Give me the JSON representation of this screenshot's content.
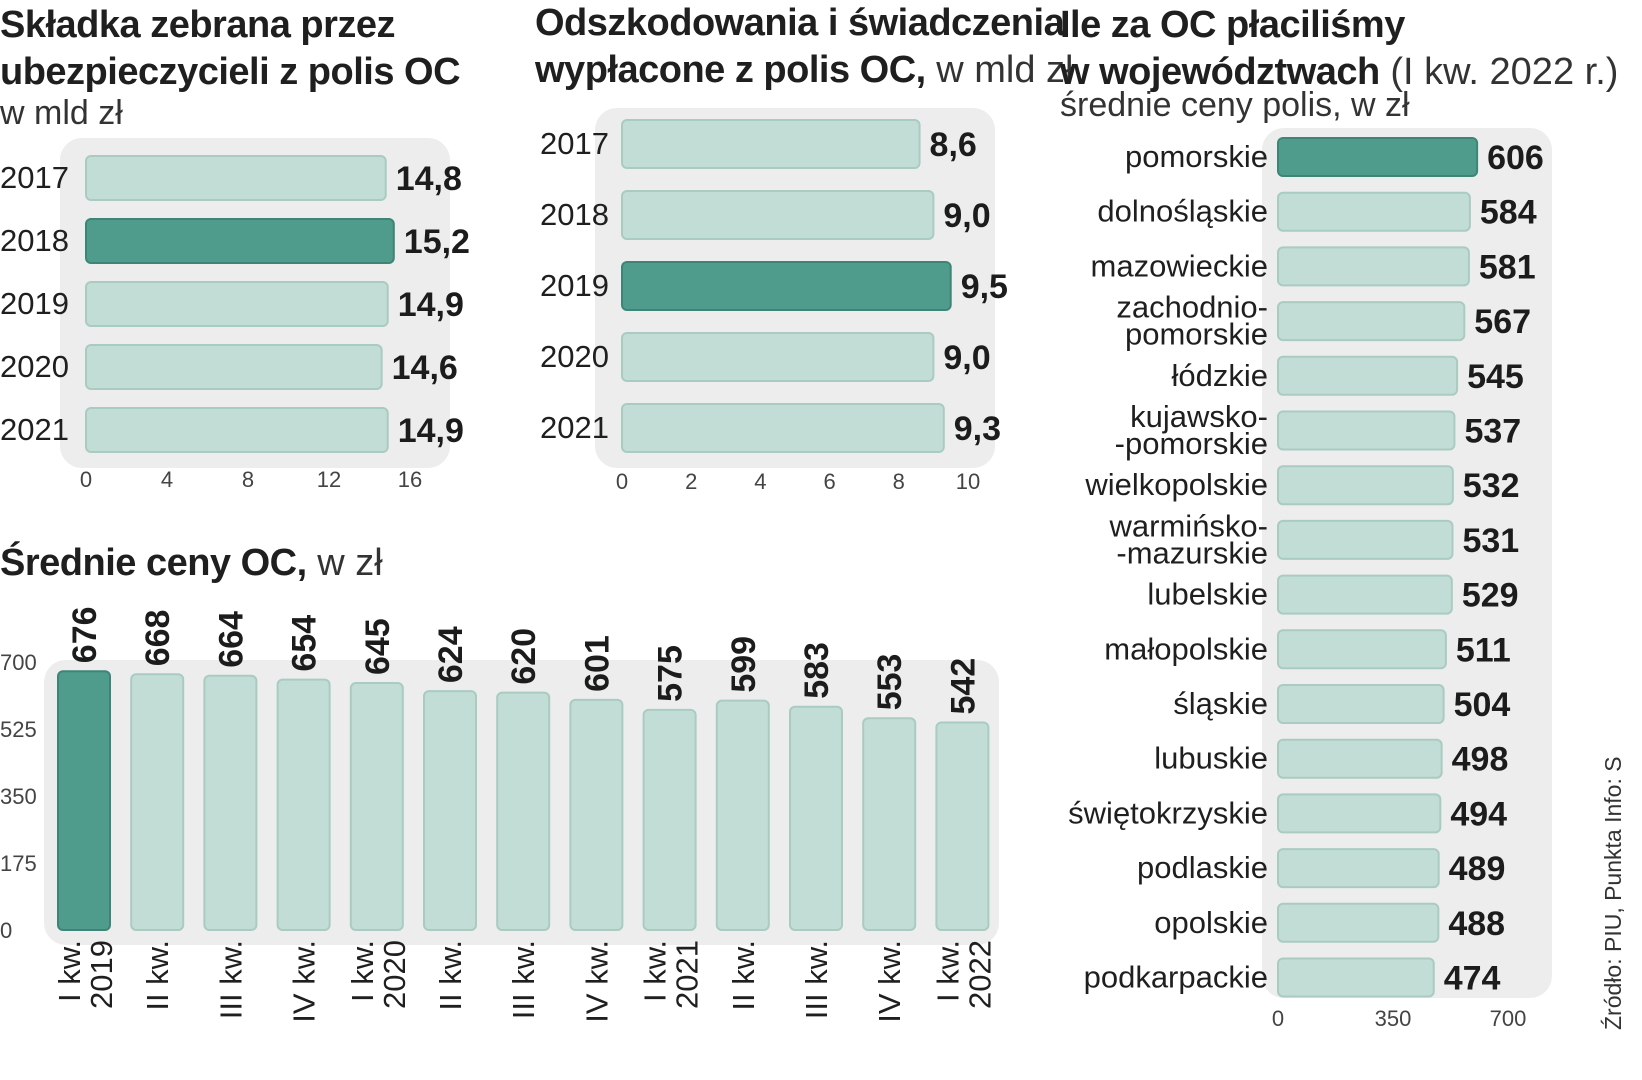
{
  "chart_data": [
    {
      "id": "premium",
      "type": "bar",
      "orientation": "horizontal",
      "title": "Składka zebrana przez ubezpieczycieli z polis OC",
      "title_lines": [
        "Składka zebrana przez",
        "ubezpieczycieli z polis OC"
      ],
      "subtitle": "w mld zł",
      "categories": [
        "2017",
        "2018",
        "2019",
        "2020",
        "2021"
      ],
      "values": [
        14.8,
        15.2,
        14.9,
        14.6,
        14.9
      ],
      "value_labels": [
        "14,8",
        "15,2",
        "14,9",
        "14,6",
        "14,9"
      ],
      "highlight": [
        1
      ],
      "xlim": [
        0,
        16
      ],
      "ticks": [
        "0",
        "4",
        "8",
        "12",
        "16"
      ]
    },
    {
      "id": "claims",
      "type": "bar",
      "orientation": "horizontal",
      "title": "Odszkodowania i świadczenia wypłacone z polis OC",
      "title_lines": [
        "Odszkodowania i świadczenia",
        "wypłacone z polis OC,"
      ],
      "subtitle": "w mld zł",
      "categories": [
        "2017",
        "2018",
        "2019",
        "2020",
        "2021"
      ],
      "values": [
        8.6,
        9.0,
        9.5,
        9.0,
        9.3
      ],
      "value_labels": [
        "8,6",
        "9,0",
        "9,5",
        "9,0",
        "9,3"
      ],
      "highlight": [
        2
      ],
      "xlim": [
        0,
        10
      ],
      "ticks": [
        "0",
        "2",
        "4",
        "6",
        "8",
        "10"
      ]
    },
    {
      "id": "avg-price",
      "type": "bar",
      "orientation": "vertical",
      "title": "Średnie ceny OC,",
      "subtitle": "w zł",
      "categories": [
        [
          "I kw.",
          "2019"
        ],
        [
          "II kw."
        ],
        [
          "III kw."
        ],
        [
          "IV kw."
        ],
        [
          "I kw.",
          "2020"
        ],
        [
          "II kw."
        ],
        [
          "III kw."
        ],
        [
          "IV kw."
        ],
        [
          "I kw.",
          "2021"
        ],
        [
          "II kw."
        ],
        [
          "III kw."
        ],
        [
          "IV kw."
        ],
        [
          "I kw.",
          "2022"
        ]
      ],
      "values": [
        676,
        668,
        664,
        654,
        645,
        624,
        620,
        601,
        575,
        599,
        583,
        553,
        542
      ],
      "highlight": [
        0
      ],
      "ylim": [
        0,
        700
      ],
      "ticks": [
        "0",
        "175",
        "350",
        "525",
        "700"
      ]
    },
    {
      "id": "regions",
      "type": "bar",
      "orientation": "horizontal",
      "title": "Ile za OC płaciliśmy w województwach",
      "title_lines": [
        "Ile za OC płaciliśmy",
        "w województwach"
      ],
      "title_suffix": "(I kw. 2022 r.)",
      "subtitle": "średnie ceny polis, w zł",
      "categories": [
        [
          "pomorskie"
        ],
        [
          "dolnośląskie"
        ],
        [
          "mazowieckie"
        ],
        [
          "zachodnio-",
          "pomorskie"
        ],
        [
          "łódzkie"
        ],
        [
          "kujawsko-",
          "-pomorskie"
        ],
        [
          "wielkopolskie"
        ],
        [
          "warmińsko-",
          "-mazurskie"
        ],
        [
          "lubelskie"
        ],
        [
          "małopolskie"
        ],
        [
          "śląskie"
        ],
        [
          "lubuskie"
        ],
        [
          "świętokrzyskie"
        ],
        [
          "podlaskie"
        ],
        [
          "opolskie"
        ],
        [
          "podkarpackie"
        ]
      ],
      "values": [
        606,
        584,
        581,
        567,
        545,
        537,
        532,
        531,
        529,
        511,
        504,
        498,
        494,
        489,
        488,
        474
      ],
      "highlight": [
        0
      ],
      "xlim": [
        0,
        700
      ],
      "ticks": [
        "0",
        "350",
        "700"
      ]
    }
  ],
  "source": "Źródło: PIU, Punkta  Info: S"
}
